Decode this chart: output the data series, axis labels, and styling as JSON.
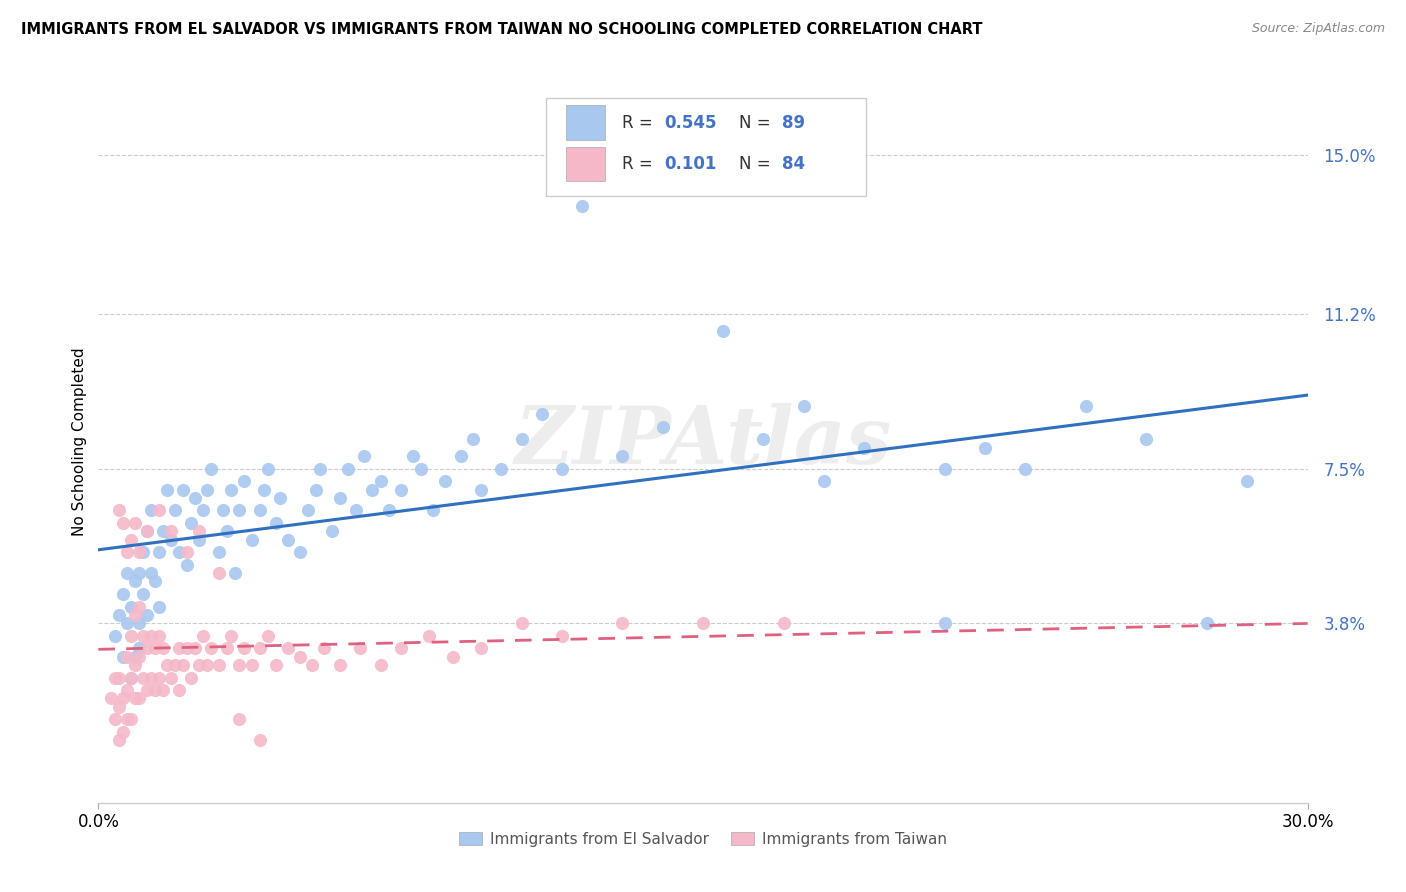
{
  "title": "IMMIGRANTS FROM EL SALVADOR VS IMMIGRANTS FROM TAIWAN NO SCHOOLING COMPLETED CORRELATION CHART",
  "source": "Source: ZipAtlas.com",
  "ylabel": "No Schooling Completed",
  "ytick_labels": [
    "3.8%",
    "7.5%",
    "11.2%",
    "15.0%"
  ],
  "ytick_values": [
    0.038,
    0.075,
    0.112,
    0.15
  ],
  "xlim": [
    0.0,
    0.3
  ],
  "ylim": [
    -0.005,
    0.168
  ],
  "blue_R": 0.545,
  "blue_N": 89,
  "pink_R": 0.101,
  "pink_N": 84,
  "blue_color": "#A8C8F0",
  "pink_color": "#F5B8C8",
  "blue_line_color": "#3070C0",
  "pink_line_color": "#E06080",
  "tick_color": "#4472C4",
  "watermark": "ZIPAtlas",
  "background_color": "#FFFFFF",
  "blue_scatter_x": [
    0.004,
    0.005,
    0.006,
    0.006,
    0.007,
    0.007,
    0.008,
    0.008,
    0.009,
    0.009,
    0.01,
    0.01,
    0.01,
    0.011,
    0.011,
    0.012,
    0.012,
    0.013,
    0.013,
    0.014,
    0.015,
    0.015,
    0.016,
    0.017,
    0.018,
    0.019,
    0.02,
    0.021,
    0.022,
    0.023,
    0.024,
    0.025,
    0.026,
    0.027,
    0.028,
    0.03,
    0.031,
    0.032,
    0.033,
    0.034,
    0.035,
    0.036,
    0.038,
    0.04,
    0.041,
    0.042,
    0.044,
    0.045,
    0.047,
    0.05,
    0.052,
    0.054,
    0.055,
    0.058,
    0.06,
    0.062,
    0.064,
    0.066,
    0.068,
    0.07,
    0.072,
    0.075,
    0.078,
    0.08,
    0.083,
    0.086,
    0.09,
    0.093,
    0.095,
    0.1,
    0.105,
    0.11,
    0.115,
    0.12,
    0.13,
    0.14,
    0.155,
    0.165,
    0.175,
    0.19,
    0.21,
    0.23,
    0.245,
    0.26,
    0.275,
    0.285,
    0.21,
    0.22,
    0.18
  ],
  "blue_scatter_y": [
    0.035,
    0.04,
    0.03,
    0.045,
    0.038,
    0.05,
    0.025,
    0.042,
    0.03,
    0.048,
    0.038,
    0.05,
    0.032,
    0.045,
    0.055,
    0.04,
    0.06,
    0.05,
    0.065,
    0.048,
    0.042,
    0.055,
    0.06,
    0.07,
    0.058,
    0.065,
    0.055,
    0.07,
    0.052,
    0.062,
    0.068,
    0.058,
    0.065,
    0.07,
    0.075,
    0.055,
    0.065,
    0.06,
    0.07,
    0.05,
    0.065,
    0.072,
    0.058,
    0.065,
    0.07,
    0.075,
    0.062,
    0.068,
    0.058,
    0.055,
    0.065,
    0.07,
    0.075,
    0.06,
    0.068,
    0.075,
    0.065,
    0.078,
    0.07,
    0.072,
    0.065,
    0.07,
    0.078,
    0.075,
    0.065,
    0.072,
    0.078,
    0.082,
    0.07,
    0.075,
    0.082,
    0.088,
    0.075,
    0.138,
    0.078,
    0.085,
    0.108,
    0.082,
    0.09,
    0.08,
    0.038,
    0.075,
    0.09,
    0.082,
    0.038,
    0.072,
    0.075,
    0.08,
    0.072
  ],
  "pink_scatter_x": [
    0.003,
    0.004,
    0.004,
    0.005,
    0.005,
    0.005,
    0.006,
    0.006,
    0.007,
    0.007,
    0.007,
    0.008,
    0.008,
    0.008,
    0.009,
    0.009,
    0.009,
    0.01,
    0.01,
    0.01,
    0.011,
    0.011,
    0.012,
    0.012,
    0.013,
    0.013,
    0.014,
    0.014,
    0.015,
    0.015,
    0.016,
    0.016,
    0.017,
    0.018,
    0.019,
    0.02,
    0.02,
    0.021,
    0.022,
    0.023,
    0.024,
    0.025,
    0.026,
    0.027,
    0.028,
    0.03,
    0.032,
    0.033,
    0.035,
    0.036,
    0.038,
    0.04,
    0.042,
    0.044,
    0.047,
    0.05,
    0.053,
    0.056,
    0.06,
    0.065,
    0.07,
    0.075,
    0.082,
    0.088,
    0.095,
    0.105,
    0.115,
    0.13,
    0.15,
    0.17,
    0.005,
    0.006,
    0.007,
    0.008,
    0.009,
    0.01,
    0.012,
    0.015,
    0.018,
    0.022,
    0.025,
    0.03,
    0.035,
    0.04
  ],
  "pink_scatter_y": [
    0.02,
    0.025,
    0.015,
    0.01,
    0.018,
    0.025,
    0.012,
    0.02,
    0.015,
    0.022,
    0.03,
    0.015,
    0.025,
    0.035,
    0.02,
    0.028,
    0.04,
    0.02,
    0.03,
    0.042,
    0.025,
    0.035,
    0.022,
    0.032,
    0.025,
    0.035,
    0.022,
    0.032,
    0.025,
    0.035,
    0.022,
    0.032,
    0.028,
    0.025,
    0.028,
    0.022,
    0.032,
    0.028,
    0.032,
    0.025,
    0.032,
    0.028,
    0.035,
    0.028,
    0.032,
    0.028,
    0.032,
    0.035,
    0.028,
    0.032,
    0.028,
    0.032,
    0.035,
    0.028,
    0.032,
    0.03,
    0.028,
    0.032,
    0.028,
    0.032,
    0.028,
    0.032,
    0.035,
    0.03,
    0.032,
    0.038,
    0.035,
    0.038,
    0.038,
    0.038,
    0.065,
    0.062,
    0.055,
    0.058,
    0.062,
    0.055,
    0.06,
    0.065,
    0.06,
    0.055,
    0.06,
    0.05,
    0.015,
    0.01
  ]
}
